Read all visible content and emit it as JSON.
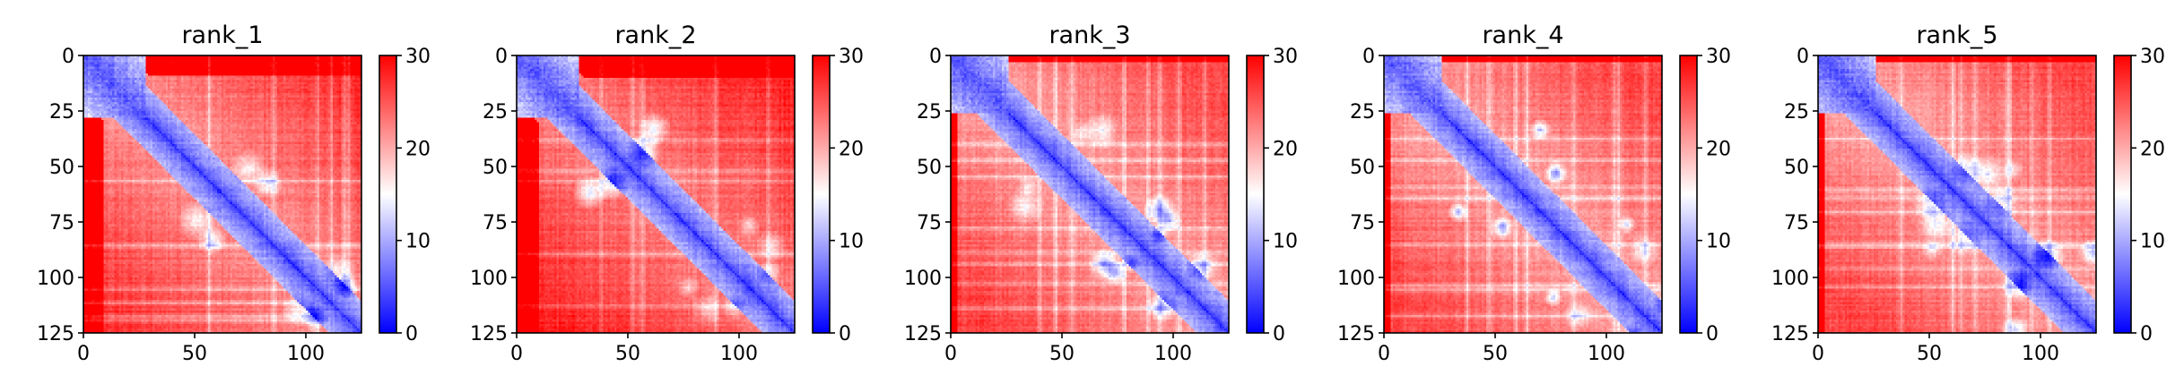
{
  "chart_data": [
    {
      "type": "heatmap",
      "title": "rank_1",
      "size": 125,
      "xlim": [
        0,
        125
      ],
      "ylim": [
        125,
        0
      ],
      "xticks": [
        0,
        50,
        100
      ],
      "yticks": [
        0,
        25,
        50,
        75,
        100,
        125
      ],
      "colorbar": {
        "range": [
          0,
          30
        ],
        "ticks": [
          0,
          10,
          20,
          30
        ],
        "colormap": "bwr"
      },
      "features": {
        "domain_end": 28,
        "floor": 21,
        "far_field": 28,
        "leftStrip": 9,
        "bands": 6,
        "blobs": 5,
        "seed": 11
      }
    },
    {
      "type": "heatmap",
      "title": "rank_2",
      "size": 125,
      "xlim": [
        0,
        125
      ],
      "ylim": [
        125,
        0
      ],
      "xticks": [
        0,
        50,
        100
      ],
      "yticks": [
        0,
        25,
        50,
        75,
        100,
        125
      ],
      "colorbar": {
        "range": [
          0,
          30
        ],
        "ticks": [
          0,
          10,
          20,
          30
        ],
        "colormap": "bwr"
      },
      "features": {
        "domain_end": 28,
        "floor": 22,
        "far_field": 28,
        "leftStrip": 10,
        "bands": 5,
        "blobs": 5,
        "seed": 23
      }
    },
    {
      "type": "heatmap",
      "title": "rank_3",
      "size": 125,
      "xlim": [
        0,
        125
      ],
      "ylim": [
        125,
        0
      ],
      "xticks": [
        0,
        50,
        100
      ],
      "yticks": [
        0,
        25,
        50,
        75,
        100,
        125
      ],
      "colorbar": {
        "range": [
          0,
          30
        ],
        "ticks": [
          0,
          10,
          20,
          30
        ],
        "colormap": "bwr"
      },
      "features": {
        "domain_end": 26,
        "floor": 20,
        "far_field": 26,
        "leftStrip": 3,
        "bands": 8,
        "blobs": 7,
        "seed": 37
      }
    },
    {
      "type": "heatmap",
      "title": "rank_4",
      "size": 125,
      "xlim": [
        0,
        125
      ],
      "ylim": [
        125,
        0
      ],
      "xticks": [
        0,
        50,
        100
      ],
      "yticks": [
        0,
        25,
        50,
        75,
        100,
        125
      ],
      "colorbar": {
        "range": [
          0,
          30
        ],
        "ticks": [
          0,
          10,
          20,
          30
        ],
        "colormap": "bwr"
      },
      "features": {
        "domain_end": 26,
        "floor": 20,
        "far_field": 26,
        "leftStrip": 3,
        "bands": 8,
        "blobs": 7,
        "seed": 41
      }
    },
    {
      "type": "heatmap",
      "title": "rank_5",
      "size": 125,
      "xlim": [
        0,
        125
      ],
      "ylim": [
        125,
        0
      ],
      "xticks": [
        0,
        50,
        100
      ],
      "yticks": [
        0,
        25,
        50,
        75,
        100,
        125
      ],
      "colorbar": {
        "range": [
          0,
          30
        ],
        "ticks": [
          0,
          10,
          20,
          30
        ],
        "colormap": "bwr"
      },
      "features": {
        "domain_end": 26,
        "floor": 20,
        "far_field": 26,
        "leftStrip": 3,
        "bands": 8,
        "blobs": 6,
        "seed": 53
      }
    }
  ]
}
